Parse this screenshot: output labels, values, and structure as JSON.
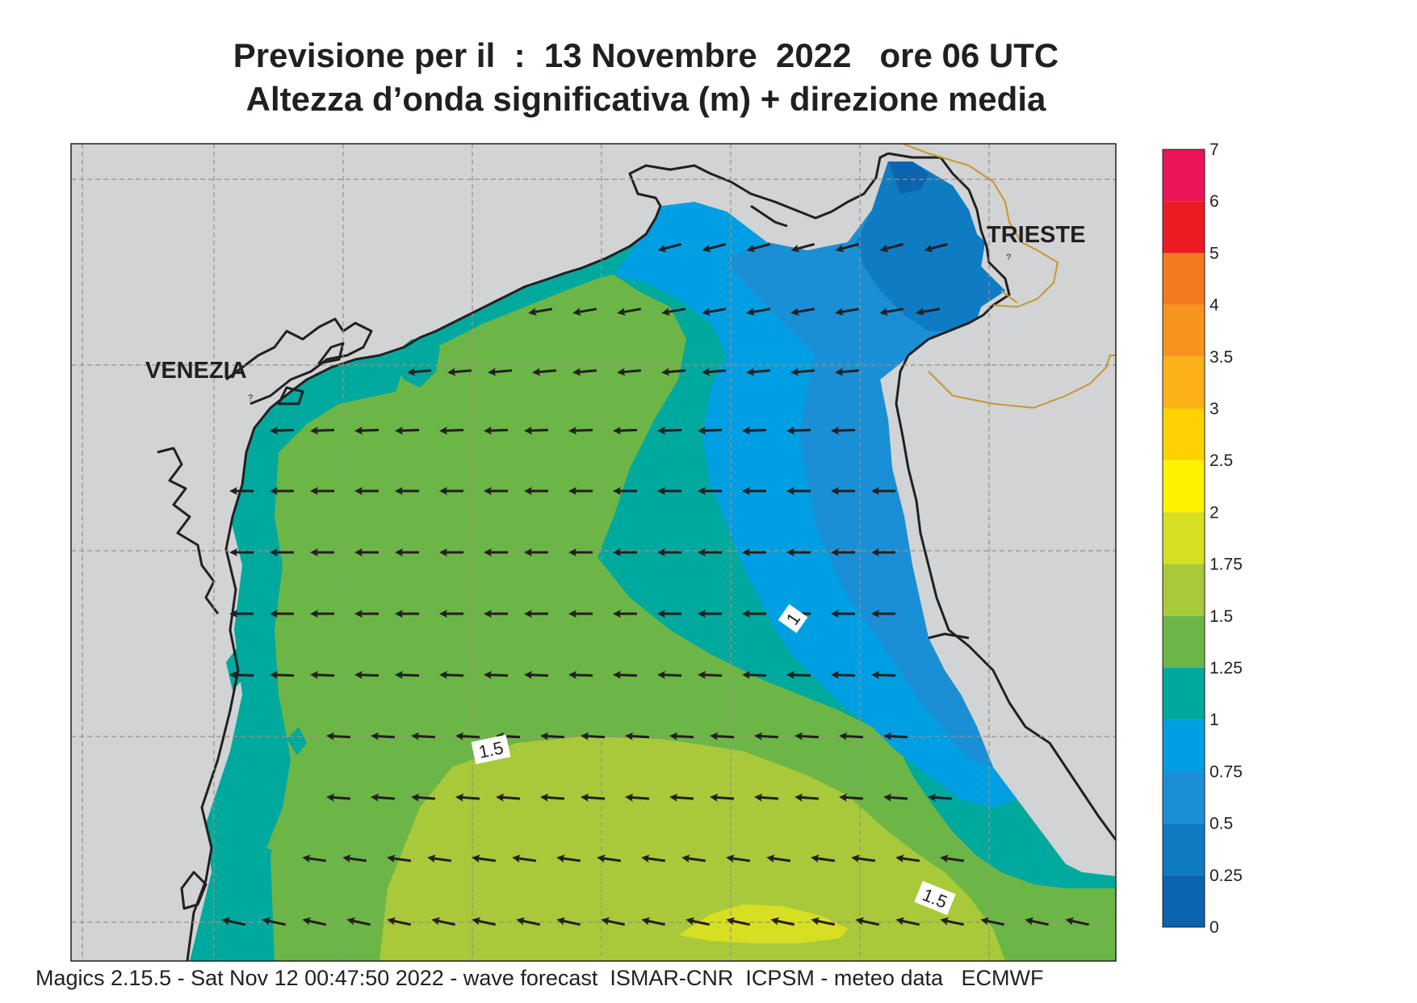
{
  "title": {
    "line1": "Previsione per il  :  13 Novembre  2022   ore 06 UTC",
    "line2": "Altezza d’onda significativa (m) + direzione media"
  },
  "cities": {
    "venezia": "VENEZIA",
    "trieste": "TRIESTE"
  },
  "contour_labels": {
    "one": "1",
    "one_five_a": "1.5",
    "one_five_b": "1.5"
  },
  "legend": {
    "stops": [
      {
        "value": "7",
        "color": ""
      },
      {
        "value": "6",
        "color": "#ec1459"
      },
      {
        "value": "5",
        "color": "#ed1c24"
      },
      {
        "value": "4",
        "color": "#f47920"
      },
      {
        "value": "3.5",
        "color": "#f7941d"
      },
      {
        "value": "3",
        "color": "#fbb117"
      },
      {
        "value": "2.5",
        "color": "#ffd200"
      },
      {
        "value": "2",
        "color": "#fff200"
      },
      {
        "value": "1.75",
        "color": "#d7df23"
      },
      {
        "value": "1.5",
        "color": "#a8c93a"
      },
      {
        "value": "1.25",
        "color": "#6cb647"
      },
      {
        "value": "1",
        "color": "#00a99d"
      },
      {
        "value": "0.75",
        "color": "#009fe3"
      },
      {
        "value": "0.5",
        "color": "#1b8fd6"
      },
      {
        "value": "0.25",
        "color": "#0f7bc2"
      },
      {
        "value": "0",
        "color": "#0a64b0"
      }
    ]
  },
  "colors": {
    "land": "#d1d3d4",
    "coast": "#231f20",
    "border": "#c8962e",
    "grid": "#a09080",
    "arrow": "#231f20"
  },
  "footer": "Magics 2.15.5 - Sat Nov 12 00:47:50 2022 - wave forecast  ISMAR-CNR  ICPSM - meteo data   ECMWF"
}
